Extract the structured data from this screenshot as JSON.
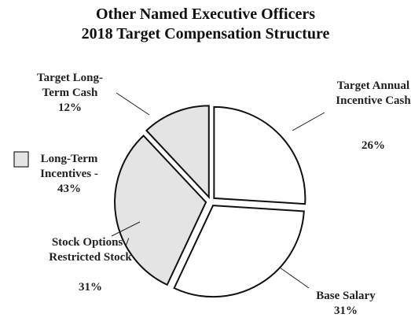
{
  "chart_data": {
    "type": "pie",
    "title": [
      "Other Named Executive Officers",
      "2018 Target Compensation Structure"
    ],
    "categories": [
      "Target Annual Incentive Cash",
      "Base Salary",
      "Stock Options / Restricted Stock",
      "Target Long-Term Cash"
    ],
    "values": [
      26,
      31,
      31,
      12
    ],
    "value_labels": [
      "26%",
      "31%",
      "31%",
      "12%"
    ],
    "colors": [
      "#ffffff",
      "#ffffff",
      "#e4e4e4",
      "#e4e4e4"
    ],
    "legend": {
      "label": "Long-Term Incentives - 43%",
      "color": "#e4e4e4"
    }
  }
}
